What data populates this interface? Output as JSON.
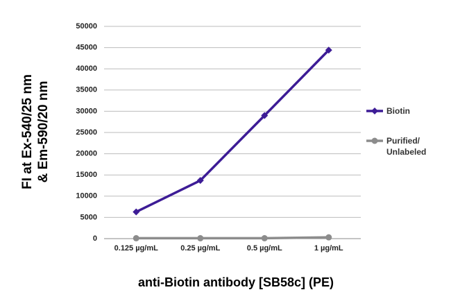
{
  "chart_data": {
    "type": "line",
    "x_label": "anti-Biotin antibody [SB58c] (PE)",
    "y_label": [
      "FI at Ex-540/25 nm",
      "& Em-590/20 nm"
    ],
    "categories": [
      "0.125 µg/mL",
      "0.25 µg/mL",
      "0.5 µg/mL",
      "1 µg/mL"
    ],
    "series": [
      {
        "name": "Biotin",
        "color": "#3d1c96",
        "marker": "diamond",
        "values": [
          6300,
          13700,
          29000,
          44400
        ]
      },
      {
        "name": "Purified/ Unlabeled",
        "color": "#8c8c8c",
        "marker": "circle",
        "values": [
          100,
          100,
          100,
          300
        ]
      }
    ],
    "ylim": [
      0,
      50000
    ],
    "yticks": [
      0,
      5000,
      10000,
      15000,
      20000,
      25000,
      30000,
      35000,
      40000,
      45000,
      50000
    ],
    "grid": true,
    "legend": "right"
  }
}
